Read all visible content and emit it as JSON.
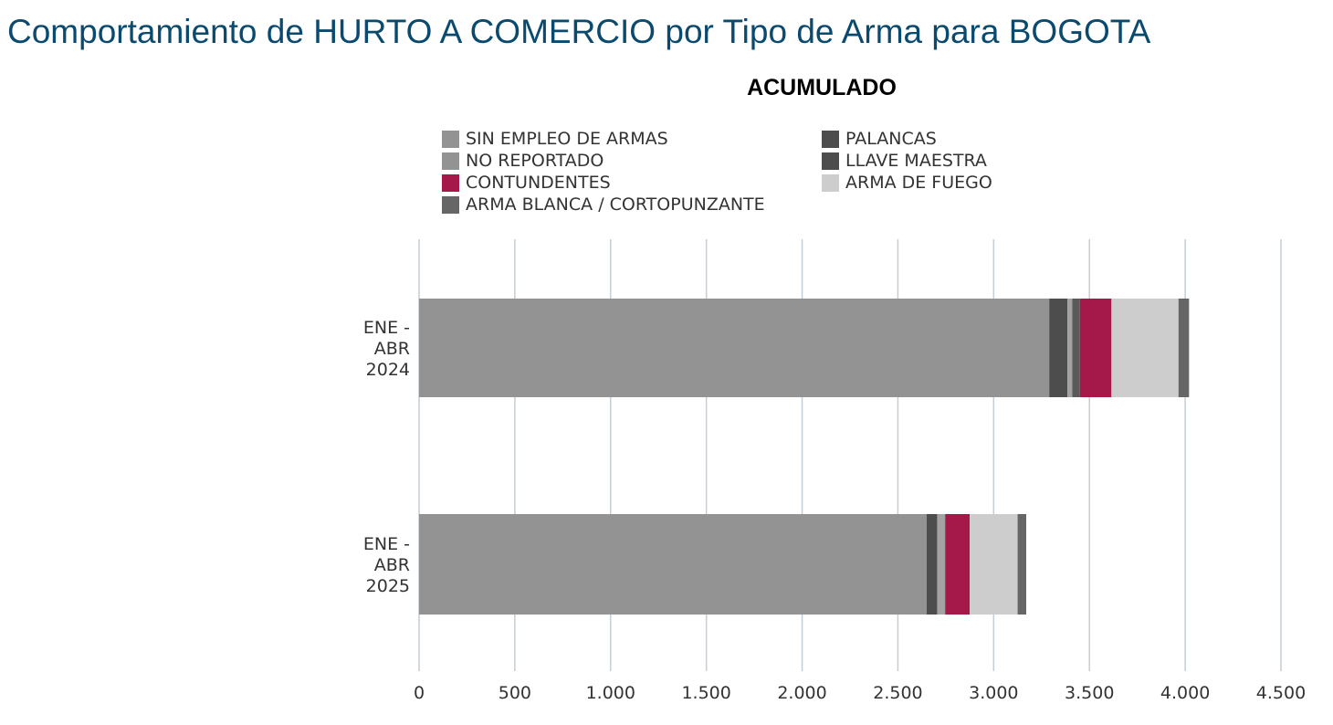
{
  "page": {
    "title": "Comportamiento de HURTO A COMERCIO por Tipo de Arma para BOGOTA"
  },
  "chart_data": {
    "type": "bar",
    "orientation": "horizontal",
    "stacked": true,
    "title": "ACUMULADO",
    "categories": [
      [
        "ENE -",
        "ABR",
        "2024"
      ],
      [
        "ENE -",
        "ABR",
        "2025"
      ]
    ],
    "xlim": [
      0,
      4500
    ],
    "x_ticks": [
      0,
      500,
      1000,
      1500,
      2000,
      2500,
      3000,
      3500,
      4000,
      4500
    ],
    "x_tick_labels": [
      "0",
      "500",
      "1.000",
      "1.500",
      "2.000",
      "2.500",
      "3.000",
      "3.500",
      "4.000",
      "4.500"
    ],
    "grid": "vertical",
    "legend_position": "top",
    "legend": [
      {
        "name": "SIN EMPLEO DE ARMAS",
        "color": "#939393"
      },
      {
        "name": "NO REPORTADO",
        "color": "#939393"
      },
      {
        "name": "CONTUNDENTES",
        "color": "#a4184a"
      },
      {
        "name": "ARMA BLANCA / CORTOPUNZANTE",
        "color": "#666666"
      },
      {
        "name": "PALANCAS",
        "color": "#4d4d4d"
      },
      {
        "name": "LLAVE MAESTRA",
        "color": "#4d4d4d"
      },
      {
        "name": "ARMA DE FUEGO",
        "color": "#cdcdcd"
      }
    ],
    "stack_order": [
      "SIN EMPLEO DE ARMAS",
      "PALANCAS",
      "NO REPORTADO",
      "LLAVE MAESTRA",
      "CONTUNDENTES",
      "ARMA DE FUEGO",
      "ARMA BLANCA / CORTOPUNZANTE"
    ],
    "series": [
      {
        "name": "SIN EMPLEO DE ARMAS",
        "color": "#939393",
        "values": [
          3290,
          2650
        ]
      },
      {
        "name": "PALANCAS",
        "color": "#4d4d4d",
        "values": [
          95,
          55
        ]
      },
      {
        "name": "NO REPORTADO",
        "color": "#a3a3a3",
        "values": [
          25,
          40
        ]
      },
      {
        "name": "LLAVE MAESTRA",
        "color": "#5a5a5a",
        "values": [
          40,
          5
        ]
      },
      {
        "name": "CONTUNDENTES",
        "color": "#a4184a",
        "values": [
          165,
          125
        ]
      },
      {
        "name": "ARMA DE FUEGO",
        "color": "#cdcdcd",
        "values": [
          350,
          250
        ]
      },
      {
        "name": "ARMA BLANCA / CORTOPUNZANTE",
        "color": "#666666",
        "values": [
          55,
          45
        ]
      }
    ]
  }
}
